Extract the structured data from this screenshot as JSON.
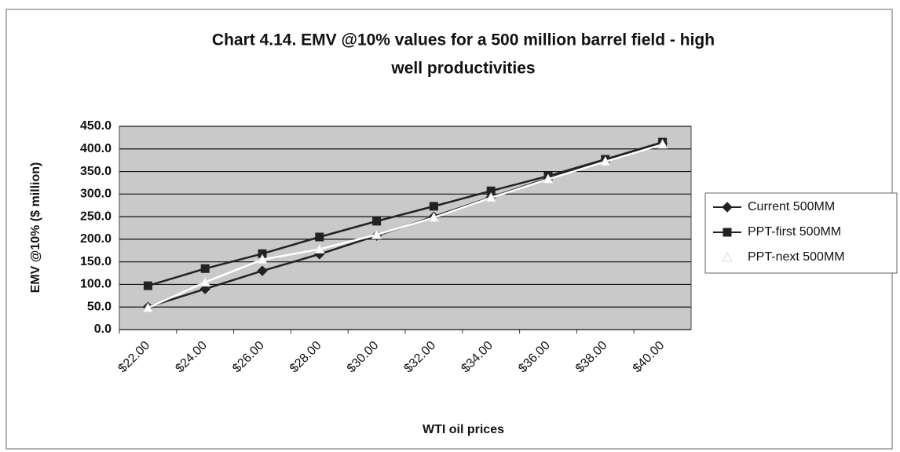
{
  "chart_data": {
    "type": "line",
    "title": [
      "Chart 4.14. EMV @10% values for a 500 million barrel field - high",
      "well productivities"
    ],
    "x_label": "WTI oil prices",
    "y_label": "EMV @10% ($ million)",
    "categories": [
      "$22.00",
      "$24.00",
      "$26.00",
      "$28.00",
      "$30.00",
      "$32.00",
      "$34.00",
      "$36.00",
      "$38.00",
      "$40.00"
    ],
    "series": [
      {
        "name": "Current 500MM",
        "color": "#222222",
        "marker": "diamond",
        "values": [
          50,
          90,
          130,
          167,
          208,
          250,
          293,
          335,
          375,
          412
        ]
      },
      {
        "name": "PPT-first 500MM",
        "color": "#222222",
        "marker": "square",
        "values": [
          97,
          135,
          168,
          205,
          240,
          273,
          307,
          340,
          377,
          415
        ]
      },
      {
        "name": "PPT-next 500MM",
        "color": "#ffffff",
        "marker": "triangle",
        "values": [
          48,
          105,
          155,
          178,
          210,
          248,
          292,
          333,
          372,
          410
        ]
      }
    ],
    "ylim": [
      0,
      450
    ],
    "yticks": [
      {
        "value": 0,
        "label": "0.0"
      },
      {
        "value": 50,
        "label": "50.0"
      },
      {
        "value": 100,
        "label": "100.0"
      },
      {
        "value": 150,
        "label": "150.0"
      },
      {
        "value": 200,
        "label": "200.0"
      },
      {
        "value": 250,
        "label": "250.0"
      },
      {
        "value": 300,
        "label": "300.0"
      },
      {
        "value": 350,
        "label": "350.0"
      },
      {
        "value": 400,
        "label": "400.0"
      },
      {
        "value": 450,
        "label": "450.0"
      }
    ],
    "grid": true,
    "legend": "right"
  }
}
